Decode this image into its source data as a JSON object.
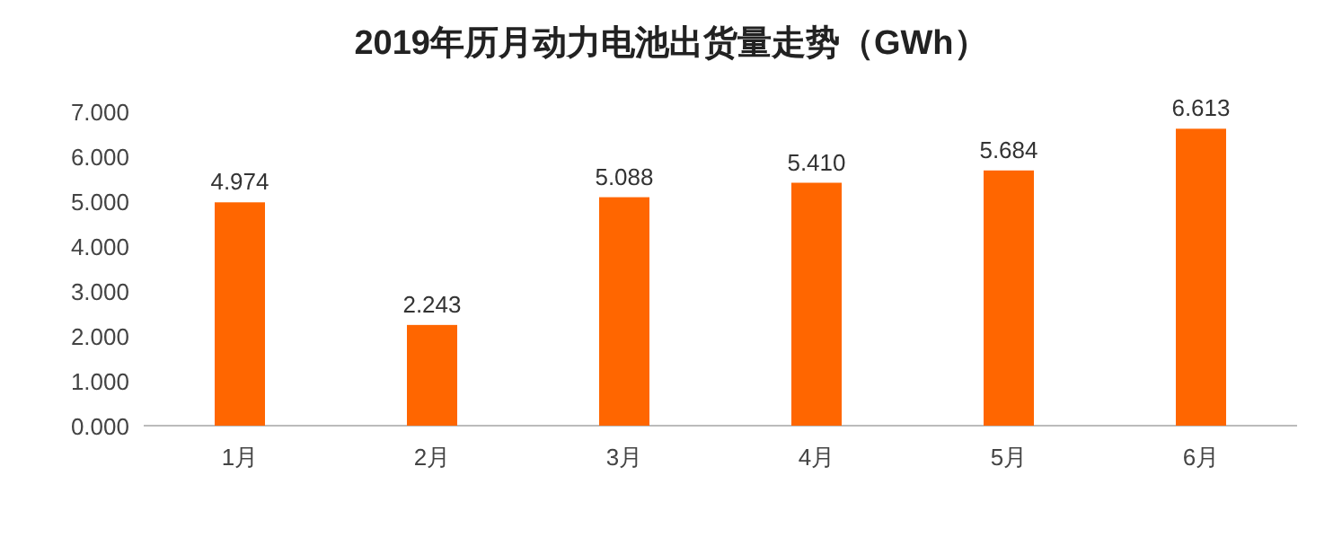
{
  "chart_data": {
    "type": "bar",
    "title": "2019年历月动力电池出货量走势（GWh）",
    "categories": [
      "1月",
      "2月",
      "3月",
      "4月",
      "5月",
      "6月"
    ],
    "values": [
      4.974,
      2.243,
      5.088,
      5.41,
      5.684,
      6.613
    ],
    "value_labels": [
      "4.974",
      "2.243",
      "5.088",
      "5.410",
      "5.684",
      "6.613"
    ],
    "color": "#ff6600",
    "ylim": [
      0,
      7
    ],
    "yticks": [
      {
        "value": 0,
        "label": "0.000"
      },
      {
        "value": 1,
        "label": "1.000"
      },
      {
        "value": 2,
        "label": "2.000"
      },
      {
        "value": 3,
        "label": "3.000"
      },
      {
        "value": 4,
        "label": "4.000"
      },
      {
        "value": 5,
        "label": "5.000"
      },
      {
        "value": 6,
        "label": "6.000"
      },
      {
        "value": 7,
        "label": "7.000"
      }
    ]
  }
}
